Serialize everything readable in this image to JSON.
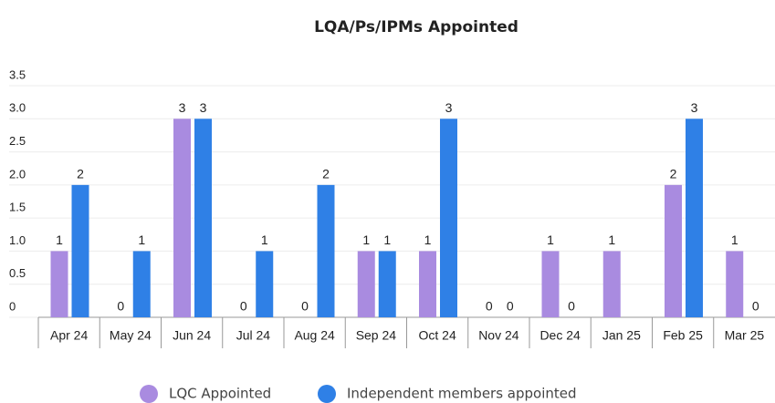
{
  "chart_data": {
    "type": "bar",
    "title": "LQA/Ps/IPMs Appointed",
    "categories": [
      "Apr 24",
      "May 24",
      "Jun 24",
      "Jul 24",
      "Aug 24",
      "Sep 24",
      "Oct 24",
      "Nov 24",
      "Dec 24",
      "Jan 25",
      "Feb 25",
      "Mar 25"
    ],
    "series": [
      {
        "name": "LQC Appointed",
        "color": "#a98be0",
        "values": [
          1,
          0,
          3,
          0,
          0,
          1,
          1,
          0,
          1,
          1,
          2,
          1
        ]
      },
      {
        "name": "Independent members appointed",
        "color": "#2f80e6",
        "values": [
          2,
          1,
          3,
          1,
          2,
          1,
          3,
          0,
          0,
          null,
          3,
          0
        ]
      }
    ],
    "ylim": [
      0,
      3.5
    ],
    "yticks": [
      0,
      0.5,
      {
        "value": 1,
        "label": "1.0"
      },
      1.5,
      {
        "value": 2,
        "label": "2.0"
      },
      2.5,
      {
        "value": 3,
        "label": "3.0"
      },
      3.5
    ],
    "grid": true,
    "legend": "bottom"
  }
}
